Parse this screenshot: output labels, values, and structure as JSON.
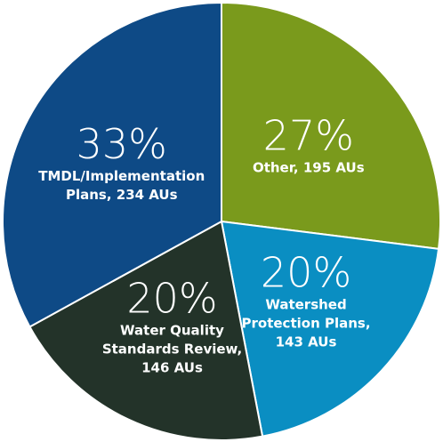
{
  "chart_data": {
    "type": "pie",
    "categories": [
      "Other, 195 AUs",
      "Watershed Protection Plans, 143 AUs",
      "Water Quality Standards Review, 146 AUs",
      "TMDL/Implementation Plans, 234 AUs"
    ],
    "values": [
      27,
      20,
      20,
      33
    ],
    "value_labels": [
      "27%",
      "20%",
      "20%",
      "33%"
    ],
    "colors": [
      "#7a9a1c",
      "#0a8ec2",
      "#233329",
      "#0e4a86"
    ]
  }
}
